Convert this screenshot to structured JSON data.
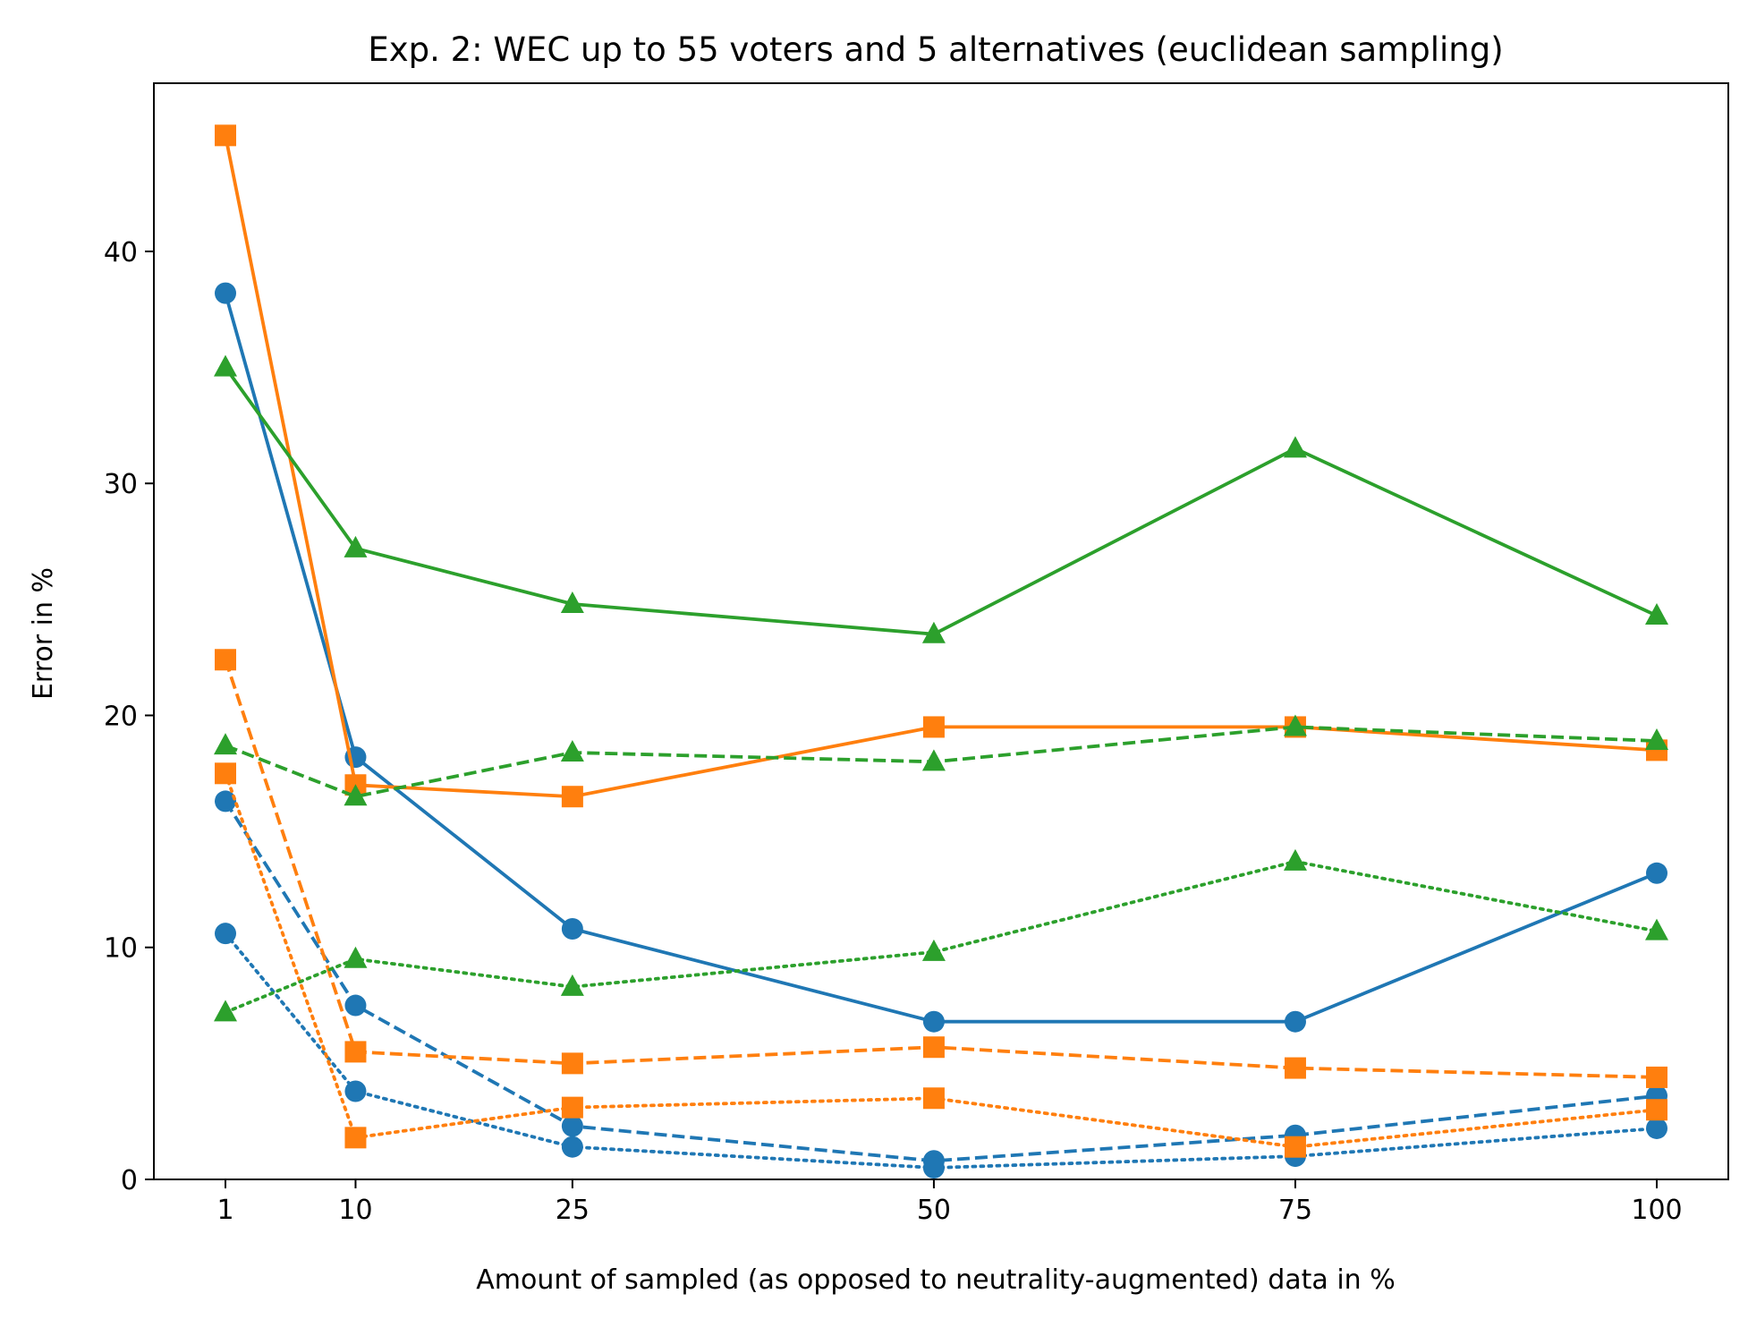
{
  "chart_data": {
    "type": "line",
    "title": "Exp. 2: WEC up to 55 voters and 5 alternatives (euclidean sampling)",
    "xlabel": "Amount of sampled (as opposed to neutrality-augmented) data in %",
    "ylabel": "Error in %",
    "x": [
      1,
      10,
      25,
      50,
      75,
      100
    ],
    "x_ticks": [
      "1",
      "10",
      "25",
      "50",
      "75",
      "100"
    ],
    "y_ticks": [
      "0",
      "10",
      "20",
      "30",
      "40"
    ],
    "xlim": [
      -3.95,
      104.95
    ],
    "ylim": [
      0,
      47.25
    ],
    "grid": false,
    "series": [
      {
        "color": "#1f77b4",
        "marker": "circle",
        "linestyle": "solid",
        "values": [
          38.2,
          18.2,
          10.8,
          6.8,
          6.8,
          13.2
        ]
      },
      {
        "color": "#1f77b4",
        "marker": "circle",
        "linestyle": "dashed",
        "values": [
          16.3,
          7.5,
          2.3,
          0.8,
          1.9,
          3.6
        ]
      },
      {
        "color": "#1f77b4",
        "marker": "circle",
        "linestyle": "dotted",
        "values": [
          10.6,
          3.8,
          1.4,
          0.5,
          1.0,
          2.2
        ]
      },
      {
        "color": "#ff7f0e",
        "marker": "square",
        "linestyle": "solid",
        "values": [
          45.0,
          17.0,
          16.5,
          19.5,
          19.5,
          18.5
        ]
      },
      {
        "color": "#ff7f0e",
        "marker": "square",
        "linestyle": "dashed",
        "values": [
          22.4,
          5.5,
          5.0,
          5.7,
          4.8,
          4.4
        ]
      },
      {
        "color": "#ff7f0e",
        "marker": "square",
        "linestyle": "dotted",
        "values": [
          17.5,
          1.8,
          3.1,
          3.5,
          1.4,
          3.0
        ]
      },
      {
        "color": "#2ca02c",
        "marker": "triangle",
        "linestyle": "solid",
        "values": [
          35.0,
          27.2,
          24.8,
          23.5,
          31.5,
          24.3
        ]
      },
      {
        "color": "#2ca02c",
        "marker": "triangle",
        "linestyle": "dashed",
        "values": [
          18.7,
          16.5,
          18.4,
          18.0,
          19.5,
          18.9
        ]
      },
      {
        "color": "#2ca02c",
        "marker": "triangle",
        "linestyle": "dotted",
        "values": [
          7.2,
          9.5,
          8.3,
          9.8,
          13.7,
          10.7
        ]
      }
    ]
  }
}
